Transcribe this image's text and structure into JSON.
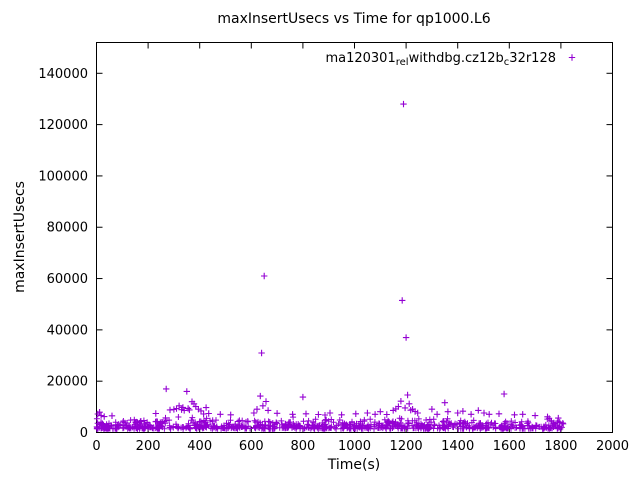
{
  "chart_data": {
    "type": "scatter",
    "title": "maxInsertUsecs vs Time for qp1000.L6",
    "xlabel": "Time(s)",
    "ylabel": "maxInsertUsecs",
    "xlim": [
      0,
      2000
    ],
    "ylim": [
      0,
      152000
    ],
    "xticks": [
      0,
      200,
      400,
      600,
      800,
      1000,
      1200,
      1400,
      1600,
      1800,
      2000
    ],
    "yticks": [
      0,
      20000,
      40000,
      60000,
      80000,
      100000,
      120000,
      140000
    ],
    "grid": false,
    "marker": "plus",
    "color": "#9400D3",
    "background": "#ffffff",
    "axis_color": "#000000",
    "legend": {
      "position": "top-right-inside",
      "label_plain": "ma120301_rel_withdbg.cz12b_c32r128",
      "parts": [
        {
          "text": "ma120301",
          "sub": false
        },
        {
          "text": "rel",
          "sub": true
        },
        {
          "text": "withdbg.cz12b",
          "sub": false
        },
        {
          "text": "c",
          "sub": true
        },
        {
          "text": "32r128",
          "sub": false
        }
      ]
    },
    "series": [
      {
        "name": "ma120301_rel_withdbg.cz12b_c32r128",
        "outlier_points": [
          [
            5,
            7200
          ],
          [
            12,
            7900
          ],
          [
            18,
            6600
          ],
          [
            30,
            6200
          ],
          [
            60,
            6500
          ],
          [
            230,
            7400
          ],
          [
            270,
            17000
          ],
          [
            285,
            8800
          ],
          [
            300,
            9000
          ],
          [
            310,
            9300
          ],
          [
            320,
            10400
          ],
          [
            330,
            8900
          ],
          [
            335,
            9800
          ],
          [
            340,
            8600
          ],
          [
            350,
            16000
          ],
          [
            355,
            9400
          ],
          [
            360,
            8800
          ],
          [
            370,
            12000
          ],
          [
            378,
            11200
          ],
          [
            385,
            10100
          ],
          [
            395,
            9100
          ],
          [
            405,
            8400
          ],
          [
            415,
            7200
          ],
          [
            425,
            9700
          ],
          [
            435,
            7400
          ],
          [
            480,
            7100
          ],
          [
            520,
            6900
          ],
          [
            610,
            7600
          ],
          [
            622,
            9100
          ],
          [
            635,
            14200
          ],
          [
            640,
            31000
          ],
          [
            645,
            10400
          ],
          [
            650,
            61000
          ],
          [
            657,
            12100
          ],
          [
            665,
            8600
          ],
          [
            700,
            7500
          ],
          [
            760,
            7100
          ],
          [
            800,
            13800
          ],
          [
            812,
            7300
          ],
          [
            860,
            7000
          ],
          [
            905,
            7600
          ],
          [
            950,
            6900
          ],
          [
            1005,
            7300
          ],
          [
            1050,
            7600
          ],
          [
            1080,
            7100
          ],
          [
            1100,
            8100
          ],
          [
            1125,
            7000
          ],
          [
            1150,
            8600
          ],
          [
            1160,
            9200
          ],
          [
            1170,
            10100
          ],
          [
            1180,
            12200
          ],
          [
            1185,
            51500
          ],
          [
            1190,
            128000
          ],
          [
            1196,
            9600
          ],
          [
            1200,
            37000
          ],
          [
            1206,
            14600
          ],
          [
            1212,
            11200
          ],
          [
            1218,
            8700
          ],
          [
            1225,
            9100
          ],
          [
            1235,
            8200
          ],
          [
            1245,
            7600
          ],
          [
            1300,
            9100
          ],
          [
            1320,
            7100
          ],
          [
            1350,
            11600
          ],
          [
            1362,
            8100
          ],
          [
            1400,
            7600
          ],
          [
            1420,
            8300
          ],
          [
            1452,
            7100
          ],
          [
            1480,
            8600
          ],
          [
            1502,
            7600
          ],
          [
            1522,
            7100
          ],
          [
            1560,
            7300
          ],
          [
            1580,
            15000
          ],
          [
            1620,
            6900
          ],
          [
            1652,
            7100
          ],
          [
            1700,
            6600
          ],
          [
            1748,
            6100
          ],
          [
            1790,
            5600
          ]
        ],
        "baseline_band": {
          "description": "dense band of samples between ~1400 and ~6200 usecs across the whole run (0-1810 s)",
          "x_min": 0,
          "x_max": 1810,
          "y_min": 1400,
          "y_max": 6200,
          "count": 820,
          "seed": 1337
        }
      }
    ]
  }
}
